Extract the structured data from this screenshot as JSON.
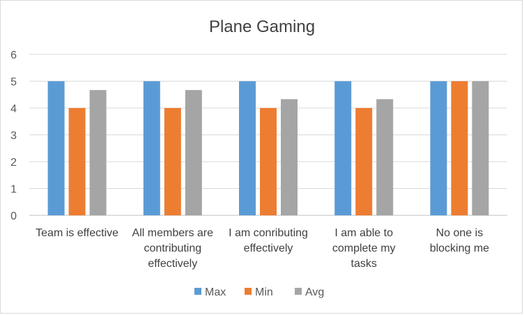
{
  "chart_data": {
    "type": "bar",
    "title": "Plane Gaming",
    "xlabel": "",
    "ylabel": "",
    "ylim": [
      0,
      6
    ],
    "yticks": [
      0,
      1,
      2,
      3,
      4,
      5,
      6
    ],
    "categories": [
      [
        "Team is effective"
      ],
      [
        "All members are",
        "contributing",
        "effectively"
      ],
      [
        "I am conributing",
        "effectively"
      ],
      [
        "I am able to",
        "complete my",
        "tasks"
      ],
      [
        "No one is",
        "blocking me"
      ]
    ],
    "series": [
      {
        "name": "Max",
        "color": "#5b9bd5",
        "values": [
          5,
          5,
          5,
          5,
          5
        ]
      },
      {
        "name": "Min",
        "color": "#ed7d31",
        "values": [
          4,
          4,
          4,
          4,
          5
        ]
      },
      {
        "name": "Avg",
        "color": "#a5a5a5",
        "values": [
          4.67,
          4.67,
          4.33,
          4.33,
          5
        ]
      }
    ],
    "grid": true,
    "legend_position": "bottom"
  }
}
